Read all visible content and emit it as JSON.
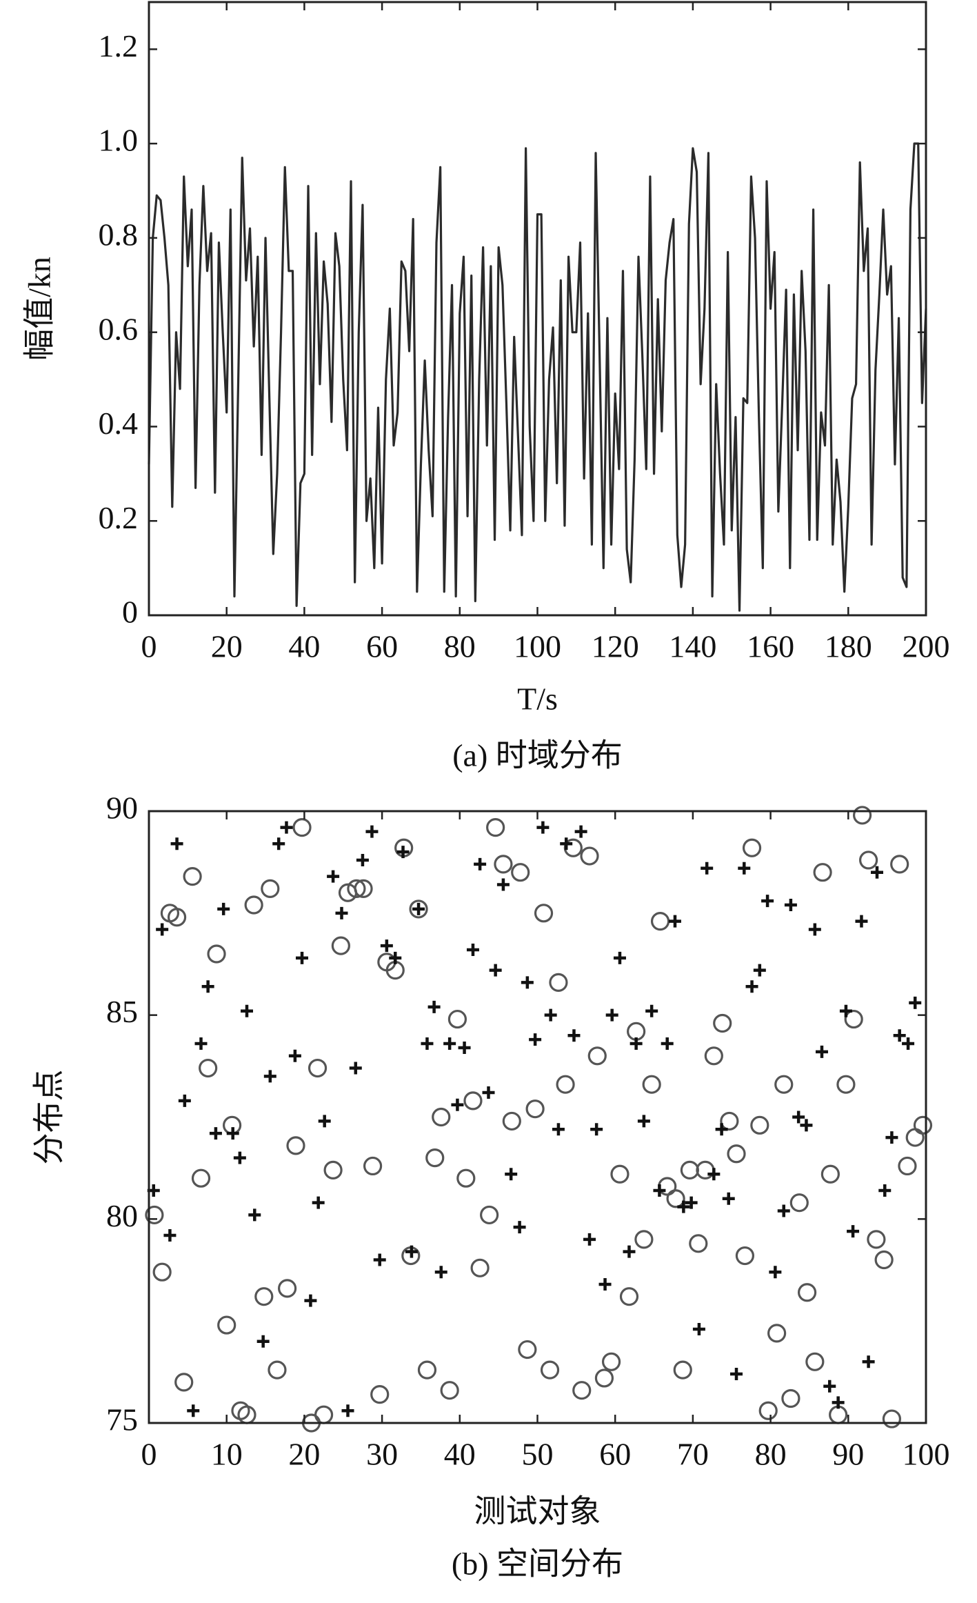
{
  "chart_data": [
    {
      "type": "line",
      "caption": "(a) 时域分布",
      "x_label": "T/s",
      "y_label": "幅值/kn",
      "color": "#2b2b2b",
      "xlim": [
        0,
        200
      ],
      "ylim": [
        0,
        1.3
      ],
      "xticks": [
        0,
        20,
        40,
        60,
        80,
        100,
        120,
        140,
        160,
        180,
        200
      ],
      "yticks": [
        0,
        0.2,
        0.4,
        0.6,
        0.8,
        {
          "value": 1,
          "label": "1.0"
        },
        1.2
      ],
      "x": [
        0,
        1,
        2,
        3,
        4,
        5,
        6,
        7,
        8,
        9,
        10,
        11,
        12,
        13,
        14,
        15,
        16,
        17,
        18,
        19,
        20,
        21,
        22,
        23,
        24,
        25,
        26,
        27,
        28,
        29,
        30,
        31,
        32,
        33,
        34,
        35,
        36,
        37,
        38,
        39,
        40,
        41,
        42,
        43,
        44,
        45,
        46,
        47,
        48,
        49,
        50,
        51,
        52,
        53,
        54,
        55,
        56,
        57,
        58,
        59,
        60,
        61,
        62,
        63,
        64,
        65,
        66,
        67,
        68,
        69,
        70,
        71,
        72,
        73,
        74,
        75,
        76,
        77,
        78,
        79,
        80,
        81,
        82,
        83,
        84,
        85,
        86,
        87,
        88,
        89,
        90,
        91,
        92,
        93,
        94,
        95,
        96,
        97,
        98,
        99,
        100,
        101,
        102,
        103,
        104,
        105,
        106,
        107,
        108,
        109,
        110,
        111,
        112,
        113,
        114,
        115,
        116,
        117,
        118,
        119,
        120,
        121,
        122,
        123,
        124,
        125,
        126,
        127,
        128,
        129,
        130,
        131,
        132,
        133,
        134,
        135,
        136,
        137,
        138,
        139,
        140,
        141,
        142,
        143,
        144,
        145,
        146,
        147,
        148,
        149,
        150,
        151,
        152,
        153,
        154,
        155,
        156,
        157,
        158,
        159,
        160,
        161,
        162,
        163,
        164,
        165,
        166,
        167,
        168,
        169,
        170,
        171,
        172,
        173,
        174,
        175,
        176,
        177,
        178,
        179,
        180,
        181,
        182,
        183,
        184,
        185,
        186,
        187,
        188,
        189,
        190,
        191,
        192,
        193,
        194,
        195,
        196,
        197,
        198,
        199,
        200
      ],
      "values": [
        0.32,
        0.8,
        0.89,
        0.88,
        0.8,
        0.7,
        0.23,
        0.6,
        0.48,
        0.93,
        0.74,
        0.86,
        0.27,
        0.7,
        0.91,
        0.73,
        0.81,
        0.26,
        0.79,
        0.6,
        0.43,
        0.86,
        0.04,
        0.5,
        0.97,
        0.71,
        0.82,
        0.57,
        0.76,
        0.34,
        0.8,
        0.46,
        0.13,
        0.3,
        0.6,
        0.95,
        0.73,
        0.73,
        0.02,
        0.28,
        0.3,
        0.91,
        0.34,
        0.81,
        0.49,
        0.75,
        0.66,
        0.41,
        0.81,
        0.74,
        0.5,
        0.35,
        0.92,
        0.07,
        0.6,
        0.87,
        0.2,
        0.29,
        0.1,
        0.44,
        0.11,
        0.5,
        0.65,
        0.36,
        0.43,
        0.75,
        0.73,
        0.56,
        0.84,
        0.05,
        0.32,
        0.54,
        0.35,
        0.21,
        0.79,
        0.95,
        0.05,
        0.42,
        0.7,
        0.04,
        0.64,
        0.76,
        0.21,
        0.72,
        0.03,
        0.5,
        0.78,
        0.36,
        0.74,
        0.16,
        0.78,
        0.7,
        0.45,
        0.18,
        0.59,
        0.38,
        0.17,
        0.99,
        0.4,
        0.2,
        0.85,
        0.85,
        0.2,
        0.5,
        0.61,
        0.28,
        0.71,
        0.19,
        0.76,
        0.6,
        0.6,
        0.79,
        0.29,
        0.64,
        0.15,
        0.98,
        0.55,
        0.1,
        0.63,
        0.15,
        0.47,
        0.31,
        0.73,
        0.14,
        0.07,
        0.33,
        0.76,
        0.55,
        0.31,
        0.93,
        0.3,
        0.67,
        0.39,
        0.71,
        0.79,
        0.84,
        0.17,
        0.06,
        0.15,
        0.83,
        0.99,
        0.94,
        0.49,
        0.65,
        0.98,
        0.04,
        0.49,
        0.3,
        0.15,
        0.77,
        0.18,
        0.42,
        0.01,
        0.46,
        0.45,
        0.93,
        0.8,
        0.42,
        0.1,
        0.92,
        0.65,
        0.77,
        0.22,
        0.45,
        0.69,
        0.1,
        0.68,
        0.35,
        0.73,
        0.56,
        0.16,
        0.86,
        0.16,
        0.43,
        0.36,
        0.7,
        0.15,
        0.33,
        0.24,
        0.05,
        0.23,
        0.46,
        0.49,
        0.96,
        0.73,
        0.82,
        0.15,
        0.52,
        0.68,
        0.86,
        0.68,
        0.74,
        0.32,
        0.63,
        0.08,
        0.06,
        0.86,
        1.0,
        1.0,
        0.45,
        0.65
      ]
    },
    {
      "type": "scatter",
      "caption": "(b) 空间分布",
      "x_label": "测试对象",
      "y_label": "分布点",
      "xlim": [
        0,
        100
      ],
      "ylim": [
        75,
        90
      ],
      "xticks": [
        0,
        10,
        20,
        30,
        40,
        50,
        60,
        70,
        80,
        90,
        100
      ],
      "yticks": [
        75,
        80,
        85,
        90
      ],
      "series": [
        {
          "marker": "circle",
          "color": "#555555",
          "x": [
            0.7,
            1.7,
            2.7,
            3.6,
            4.5,
            5.6,
            6.7,
            7.6,
            8.7,
            10,
            10.7,
            11.8,
            12.6,
            13.5,
            14.8,
            15.6,
            16.5,
            17.8,
            18.9,
            19.7,
            20.9,
            21.7,
            22.5,
            23.7,
            24.7,
            25.6,
            26.7,
            27.6,
            28.8,
            29.7,
            30.6,
            31.7,
            32.8,
            33.7,
            34.7,
            35.8,
            36.8,
            37.6,
            38.7,
            39.7,
            40.8,
            41.7,
            42.6,
            43.8,
            44.6,
            45.6,
            46.7,
            47.8,
            48.7,
            49.7,
            50.8,
            51.6,
            52.7,
            53.6,
            54.6,
            55.7,
            56.7,
            57.7,
            58.6,
            59.5,
            60.6,
            61.8,
            62.7,
            63.7,
            64.7,
            65.8,
            66.7,
            67.8,
            68.7,
            69.6,
            70.7,
            71.6,
            72.7,
            73.8,
            74.7,
            75.6,
            76.7,
            77.6,
            78.6,
            79.7,
            80.8,
            81.7,
            82.6,
            83.7,
            84.7,
            85.7,
            86.7,
            87.7,
            88.7,
            89.7,
            90.7,
            91.8,
            92.6,
            93.6,
            94.6,
            95.6,
            96.6,
            97.6,
            98.6,
            99.6
          ],
          "values": [
            80.1,
            78.7,
            87.5,
            87.4,
            76,
            88.4,
            81,
            83.7,
            86.5,
            77.4,
            82.3,
            75.3,
            75.2,
            87.7,
            78.1,
            88.1,
            76.3,
            78.3,
            81.8,
            89.6,
            75,
            83.7,
            75.2,
            81.2,
            86.7,
            88,
            88.1,
            88.1,
            81.3,
            75.7,
            86.3,
            86.1,
            89.1,
            79.1,
            87.6,
            76.3,
            81.5,
            82.5,
            75.8,
            84.9,
            81,
            82.9,
            78.8,
            80.1,
            89.6,
            88.7,
            82.4,
            88.5,
            76.8,
            82.7,
            87.5,
            76.3,
            85.8,
            83.3,
            89.1,
            75.8,
            88.9,
            84,
            76.1,
            76.5,
            81.1,
            78.1,
            84.6,
            79.5,
            83.3,
            87.3,
            80.8,
            80.5,
            76.3,
            81.2,
            79.4,
            81.2,
            84,
            84.8,
            82.4,
            81.6,
            79.1,
            89.1,
            82.3,
            75.3,
            77.2,
            83.3,
            75.6,
            80.4,
            78.2,
            76.5,
            88.5,
            81.1,
            75.2,
            83.3,
            84.9,
            89.9,
            88.8,
            79.5,
            79,
            75.1,
            88.7,
            81.3,
            82,
            82.3
          ]
        },
        {
          "marker": "plus",
          "color": "#111111",
          "x": [
            0.6,
            1.7,
            2.7,
            3.6,
            4.6,
            5.7,
            6.7,
            7.6,
            8.6,
            9.6,
            10.8,
            11.7,
            12.6,
            13.6,
            14.7,
            15.6,
            16.7,
            17.7,
            18.8,
            19.7,
            20.8,
            21.8,
            22.6,
            23.7,
            24.8,
            25.6,
            26.6,
            27.5,
            28.7,
            29.7,
            30.6,
            31.7,
            32.7,
            33.8,
            34.7,
            35.8,
            36.7,
            37.6,
            38.7,
            39.7,
            40.6,
            41.7,
            42.6,
            43.7,
            44.6,
            45.6,
            46.6,
            47.7,
            48.7,
            49.7,
            50.7,
            51.7,
            52.7,
            53.7,
            54.7,
            55.6,
            56.7,
            57.6,
            58.7,
            59.6,
            60.6,
            61.8,
            62.7,
            63.7,
            64.7,
            65.7,
            66.7,
            67.7,
            68.8,
            69.8,
            70.8,
            71.8,
            72.7,
            73.7,
            74.6,
            75.6,
            76.6,
            77.6,
            78.6,
            79.6,
            80.6,
            81.7,
            82.6,
            83.6,
            84.6,
            85.7,
            86.6,
            87.6,
            88.7,
            89.7,
            90.6,
            91.7,
            92.6,
            93.7,
            94.7,
            95.6,
            96.6,
            97.7,
            98.6
          ],
          "values": [
            80.7,
            87.1,
            79.6,
            89.2,
            82.9,
            75.3,
            84.3,
            85.7,
            82.1,
            87.6,
            82.1,
            81.5,
            85.1,
            80.1,
            77,
            83.5,
            89.2,
            89.6,
            84,
            86.4,
            78,
            80.4,
            82.4,
            88.4,
            87.5,
            75.3,
            83.7,
            88.8,
            89.5,
            79,
            86.7,
            86.4,
            89,
            79.2,
            87.6,
            84.3,
            85.2,
            78.7,
            84.3,
            82.8,
            84.2,
            86.6,
            88.7,
            83.1,
            86.1,
            88.2,
            81.1,
            79.8,
            85.8,
            84.4,
            89.6,
            85,
            82.2,
            89.2,
            84.5,
            89.5,
            79.5,
            82.2,
            78.4,
            85,
            86.4,
            79.2,
            84.3,
            82.4,
            85.1,
            80.7,
            84.3,
            87.3,
            80.3,
            80.4,
            77.3,
            88.6,
            81.1,
            82.2,
            80.5,
            76.2,
            88.6,
            85.7,
            86.1,
            87.8,
            78.7,
            80.2,
            87.7,
            82.5,
            82.3,
            87.1,
            84.1,
            75.9,
            75.5,
            85.1,
            79.7,
            87.3,
            76.5,
            88.5,
            80.7,
            82,
            84.5,
            84.3,
            85.3
          ]
        }
      ]
    }
  ]
}
